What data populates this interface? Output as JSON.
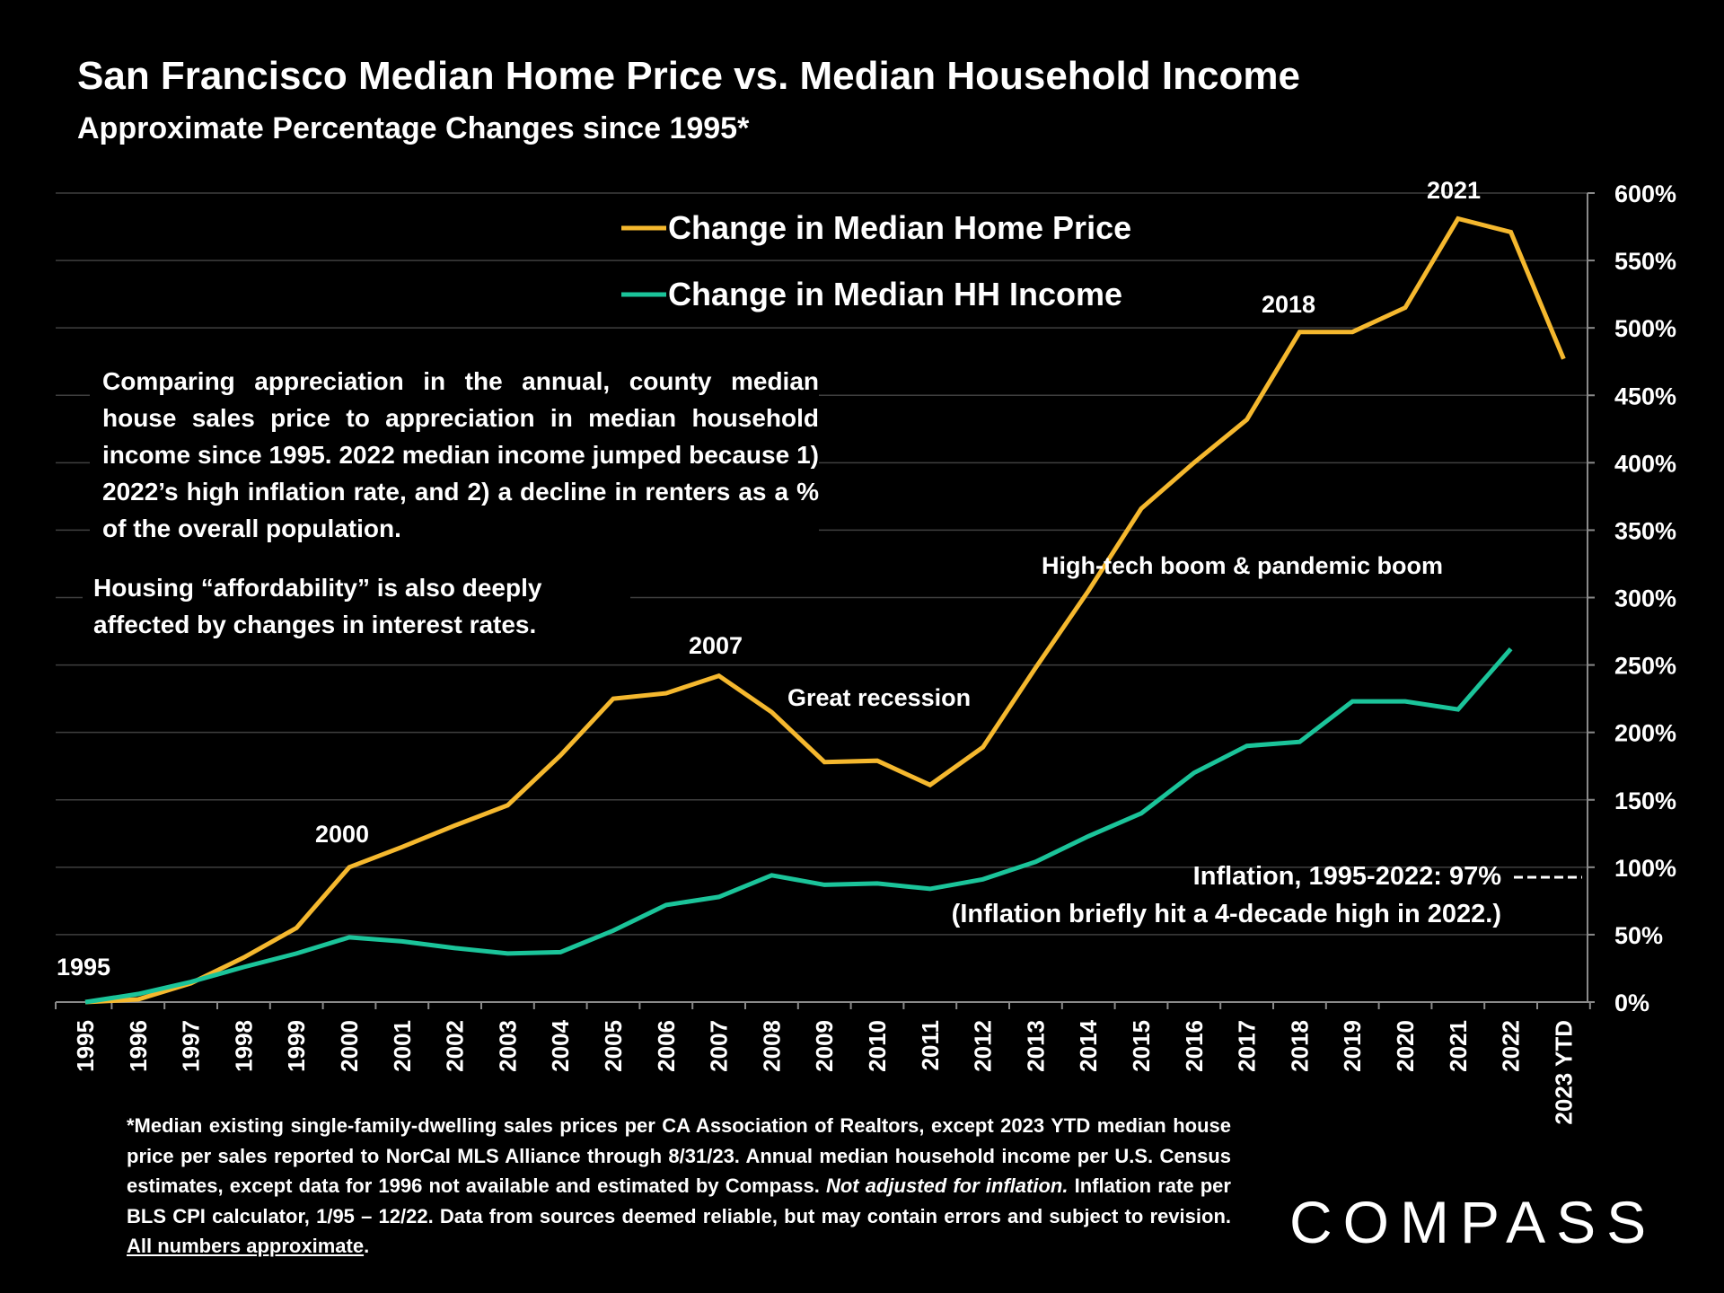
{
  "chart_data": {
    "type": "line",
    "title": "San Francisco Median Home Price vs. Median Household Income",
    "subtitle": "Approximate Percentage Changes since 1995*",
    "categories": [
      "1995",
      "1996",
      "1997",
      "1998",
      "1999",
      "2000",
      "2001",
      "2002",
      "2003",
      "2004",
      "2005",
      "2006",
      "2007",
      "2008",
      "2009",
      "2010",
      "2011",
      "2012",
      "2013",
      "2014",
      "2015",
      "2016",
      "2017",
      "2018",
      "2019",
      "2020",
      "2021",
      "2022",
      "2023 YTD"
    ],
    "series": [
      {
        "name": "Change in Median Home Price",
        "color": "#F5B82E",
        "values": [
          0,
          2,
          14,
          33,
          55,
          100,
          115,
          131,
          146,
          183,
          225,
          229,
          242,
          215,
          178,
          179,
          161,
          189,
          248,
          305,
          366,
          400,
          432,
          497,
          497,
          515,
          581,
          571,
          477
        ]
      },
      {
        "name": "Change in Median HH Income",
        "color": "#1BC49A",
        "values": [
          0,
          6,
          15,
          26,
          36,
          48,
          45,
          40,
          36,
          37,
          53,
          72,
          78,
          94,
          87,
          88,
          84,
          91,
          104,
          123,
          140,
          170,
          190,
          193,
          223,
          223,
          217,
          262,
          null
        ]
      }
    ],
    "yaxis": {
      "min": 0,
      "max": 600,
      "step": 50,
      "position": "right",
      "tick_suffix": "%",
      "tick_labels": [
        "0%",
        "50%",
        "100%",
        "150%",
        "200%",
        "250%",
        "300%",
        "350%",
        "400%",
        "450%",
        "500%",
        "550%",
        "600%"
      ]
    },
    "grid": true,
    "legend": "top-center",
    "inflation_value": 97,
    "annotations": {
      "y1995": "1995",
      "y2000": "2000",
      "y2007": "2007",
      "y2018": "2018",
      "y2021": "2021",
      "great_recession": "Great recession",
      "hightech": "High-tech boom & pandemic boom",
      "inflation": "Inflation, 1995-2022:  97%",
      "inflation_note": "(Inflation briefly hit a 4-decade high in 2022.)"
    }
  },
  "paragraph1": "Comparing appreciation in the annual, county median house sales price to appreciation in median household income since 1995. 2022 median income jumped because 1) 2022’s high inflation rate, and 2) a decline in renters as a % of the overall population.",
  "paragraph2": "Housing “affordability” is also deeply affected by changes in interest rates.",
  "footnote": {
    "main": "*Median existing single-family-dwelling sales prices per CA Association of Realtors, except 2023 YTD median house price per sales reported to NorCal MLS Alliance through 8/31/23. Annual median household income per U.S. Census estimates, except data for 1996 not available and estimated by Compass.",
    "italic": "Not adjusted for inflation.",
    "rest": "Inflation rate per BLS CPI calculator, 1/95 – 12/22. Data from sources deemed reliable, but may contain errors and subject to revision.",
    "underlined": "All numbers approximate",
    "end": "."
  },
  "logo": "COMPASS"
}
